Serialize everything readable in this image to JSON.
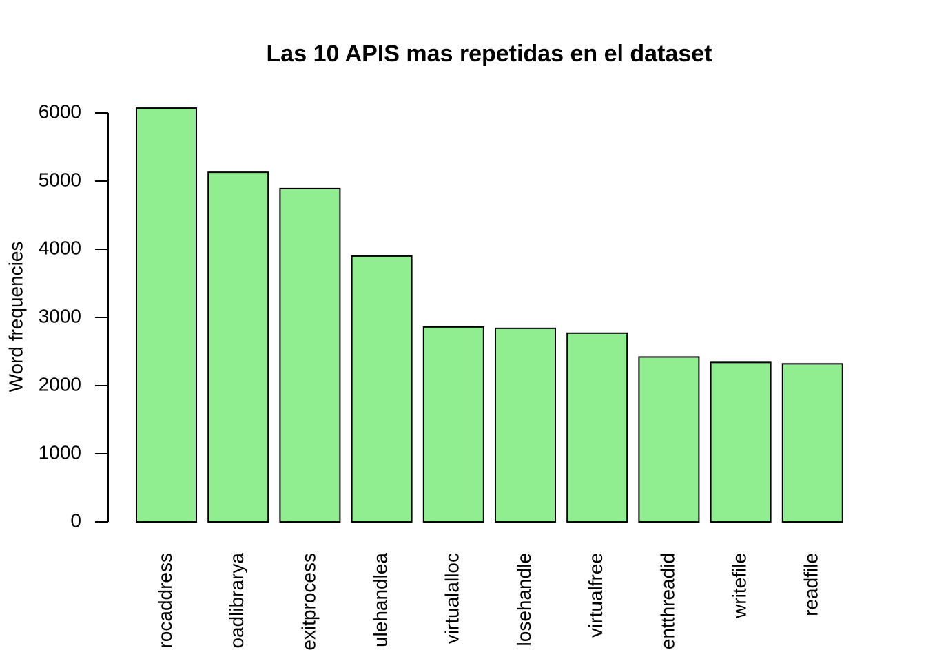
{
  "chart_data": {
    "type": "bar",
    "title": "Las 10 APIS mas repetidas en el dataset",
    "y_label": "Word frequencies",
    "categories": [
      "rocaddress",
      "oadlibrarya",
      "exitprocess",
      "ulehandlea",
      "virtualalloc",
      "losehandle",
      "virtualfree",
      "entthreadid",
      "writefile",
      "readfile"
    ],
    "values": [
      6070,
      5130,
      4890,
      3900,
      2860,
      2840,
      2770,
      2420,
      2340,
      2320
    ],
    "color": "#90ee90",
    "ylim": [
      0,
      6000
    ],
    "yticks": [
      0,
      1000,
      2000,
      3000,
      4000,
      5000,
      6000
    ]
  }
}
